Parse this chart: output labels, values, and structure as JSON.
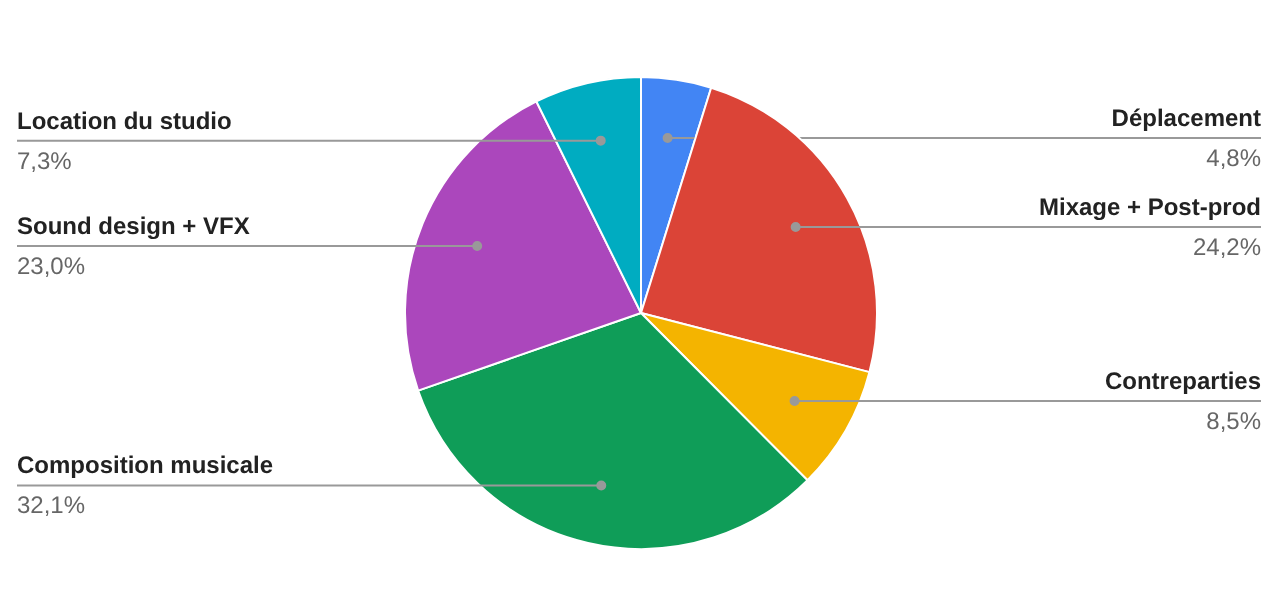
{
  "chart_data": {
    "type": "pie",
    "categories": [
      "Déplacement",
      "Mixage + Post-prod",
      "Contreparties",
      "Composition musicale",
      "Sound design + VFX",
      "Location du studio"
    ],
    "values": [
      4.8,
      24.2,
      8.5,
      32.1,
      23.0,
      7.3
    ],
    "colors": [
      "#4285f4",
      "#db4437",
      "#f4b400",
      "#0f9d58",
      "#ab47bc",
      "#00acc1"
    ],
    "value_labels": [
      "4,8%",
      "24,2%",
      "8,5%",
      "32,1%",
      "23,0%",
      "7,3%"
    ]
  }
}
